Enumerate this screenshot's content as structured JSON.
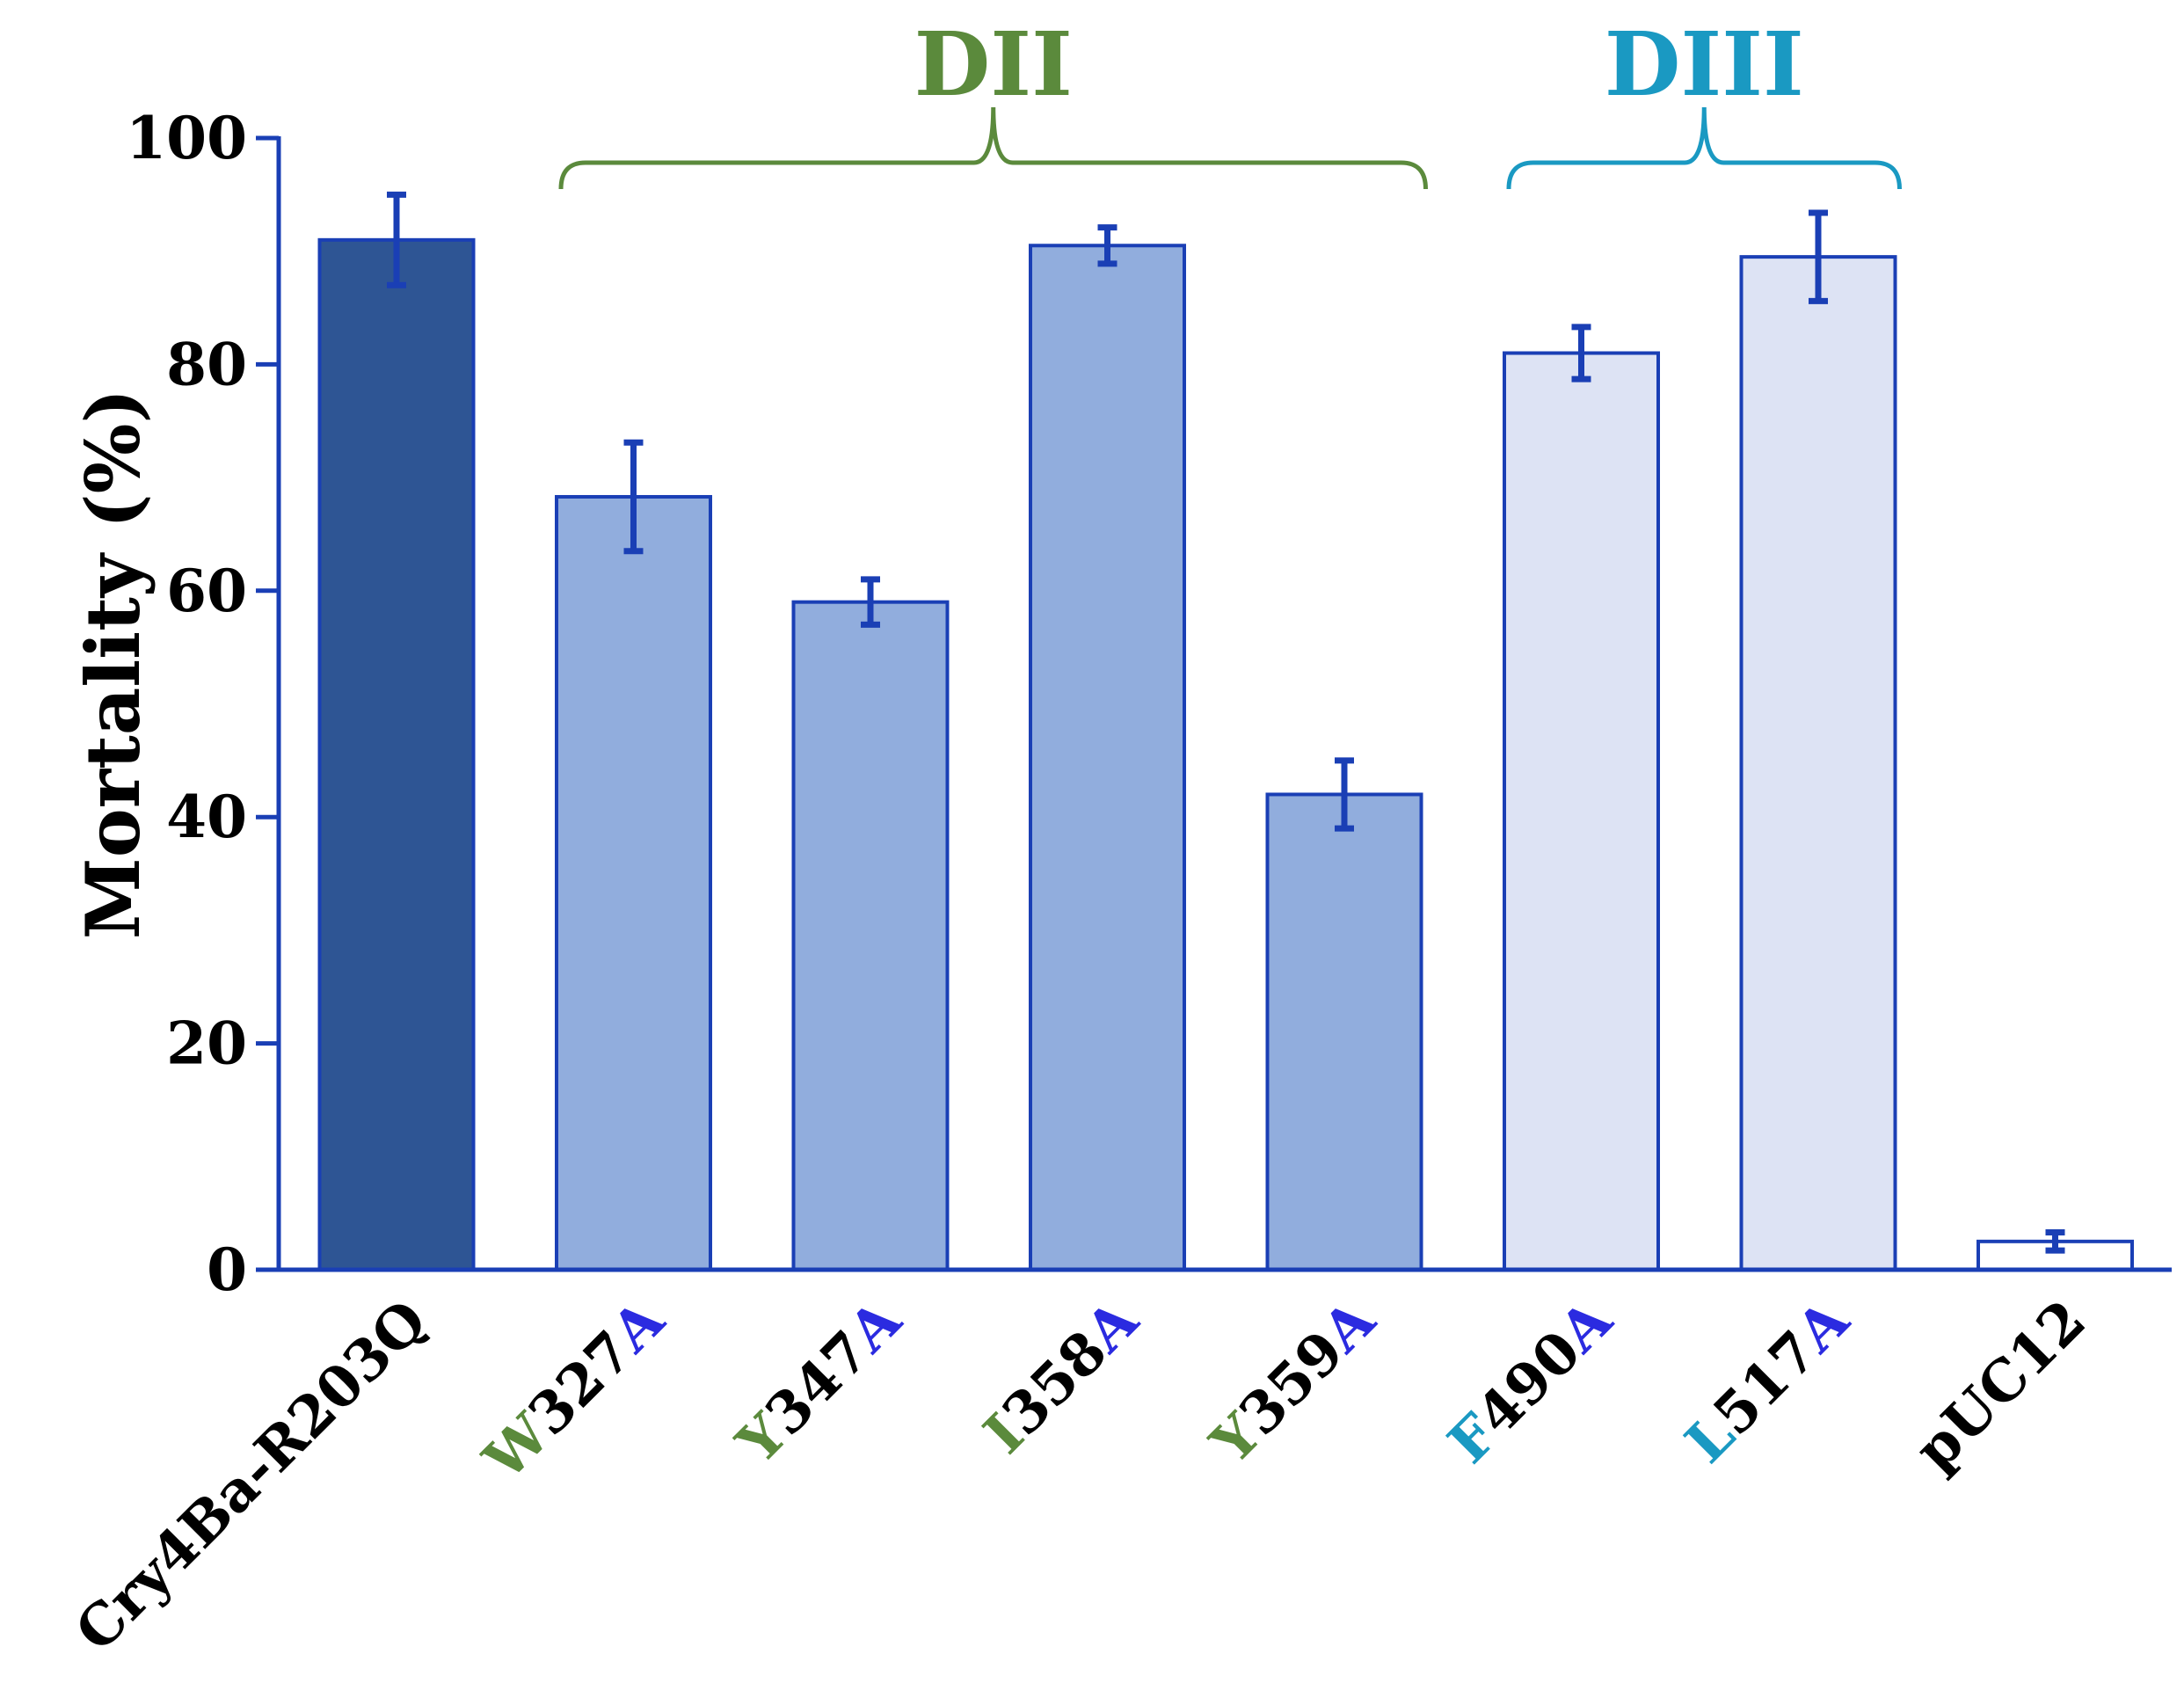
{
  "chart_data": {
    "type": "bar",
    "title": "",
    "xlabel": "",
    "ylabel": "Mortality (%)",
    "ylim": [
      0,
      100
    ],
    "yticks": [
      "0",
      "20",
      "40",
      "60",
      "80",
      "100"
    ],
    "categories": [
      {
        "label": "Cry4Ba-R203Q",
        "parts": [
          {
            "text": "Cry4Ba-R203Q",
            "color": "#000000"
          }
        ]
      },
      {
        "label": "W327A",
        "parts": [
          {
            "text": "W",
            "color": "#5B8A3C"
          },
          {
            "text": "327",
            "color": "#000000"
          },
          {
            "text": "A",
            "color": "#2B2BE0"
          }
        ]
      },
      {
        "label": "Y347A",
        "parts": [
          {
            "text": "Y",
            "color": "#5B8A3C"
          },
          {
            "text": "347",
            "color": "#000000"
          },
          {
            "text": "A",
            "color": "#2B2BE0"
          }
        ]
      },
      {
        "label": "I358A",
        "parts": [
          {
            "text": "I",
            "color": "#5B8A3C"
          },
          {
            "text": "358",
            "color": "#000000"
          },
          {
            "text": "A",
            "color": "#2B2BE0"
          }
        ]
      },
      {
        "label": "Y359A",
        "parts": [
          {
            "text": "Y",
            "color": "#5B8A3C"
          },
          {
            "text": "359",
            "color": "#000000"
          },
          {
            "text": "A",
            "color": "#2B2BE0"
          }
        ]
      },
      {
        "label": "F490A",
        "parts": [
          {
            "text": "F",
            "color": "#1A99C2"
          },
          {
            "text": "490",
            "color": "#000000"
          },
          {
            "text": "A",
            "color": "#2B2BE0"
          }
        ]
      },
      {
        "label": "L517A",
        "parts": [
          {
            "text": "L",
            "color": "#1A99C2"
          },
          {
            "text": "517",
            "color": "#000000"
          },
          {
            "text": "A",
            "color": "#2B2BE0"
          }
        ]
      },
      {
        "label": "pUC12",
        "parts": [
          {
            "text": "pUC12",
            "color": "#000000"
          }
        ]
      }
    ],
    "values": [
      91,
      68.3,
      59,
      90.5,
      42,
      81,
      89.5,
      2.5
    ],
    "errors": [
      4,
      4.8,
      2,
      1.6,
      3,
      2.3,
      3.9,
      0.8
    ],
    "bar_colors": [
      "#2E5594",
      "#91ADDD",
      "#91ADDD",
      "#91ADDD",
      "#91ADDD",
      "#DDE3F4",
      "#DDE3F4",
      "#FFFFFF"
    ],
    "edge_color": "#1A3FB5",
    "error_color": "#1A3FB5",
    "axis_color": "#1A3FB5",
    "groups": [
      {
        "label": "DII",
        "start_index": 1,
        "end_index": 4,
        "color": "#5B8A3C"
      },
      {
        "label": "DIII",
        "start_index": 5,
        "end_index": 6,
        "color": "#1A99C2"
      }
    ],
    "grid": false,
    "legend": "none"
  }
}
